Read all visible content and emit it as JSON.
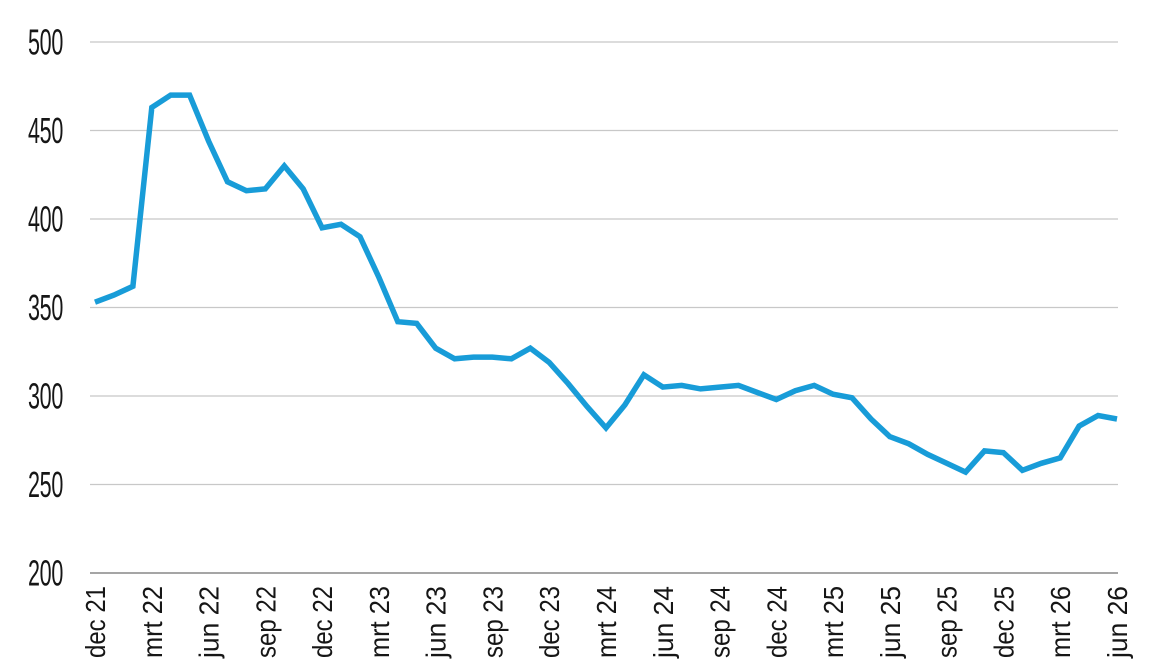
{
  "chart_data": {
    "type": "line",
    "title": "",
    "xlabel": "",
    "ylabel": "",
    "ylim": [
      200,
      500
    ],
    "y_ticks": [
      500,
      450,
      400,
      350,
      300,
      250,
      200
    ],
    "grid": "horizontal",
    "legend": "none",
    "x_tick_labels": [
      "dec 21",
      "mrt 22",
      "jun 22",
      "sep 22",
      "dec 22",
      "mrt 23",
      "jun 23",
      "sep 23",
      "dec 23",
      "mrt 24",
      "jun 24",
      "sep 24",
      "dec 24",
      "mrt 25",
      "jun 25",
      "sep 25",
      "dec 25",
      "mrt 26",
      "jun 26"
    ],
    "x_tick_interval_points": 3,
    "points_per_month": 1,
    "series": [
      {
        "name": "value",
        "values": [
          353,
          357,
          362,
          463,
          470,
          470,
          444,
          421,
          416,
          417,
          430,
          417,
          395,
          397,
          390,
          367,
          342,
          341,
          327,
          321,
          322,
          322,
          321,
          327,
          319,
          307,
          294,
          282,
          295,
          312,
          305,
          306,
          304,
          305,
          306,
          302,
          298,
          303,
          306,
          301,
          299,
          287,
          277,
          273,
          267,
          262,
          257,
          269,
          268,
          258,
          262,
          265,
          283,
          289,
          287
        ]
      }
    ]
  },
  "style": {
    "line_color": "#189cd8",
    "grid_color": "#c8c8c8",
    "axis_line_color": "#a5a5a5",
    "label_color": "#161616",
    "background": "#ffffff"
  }
}
